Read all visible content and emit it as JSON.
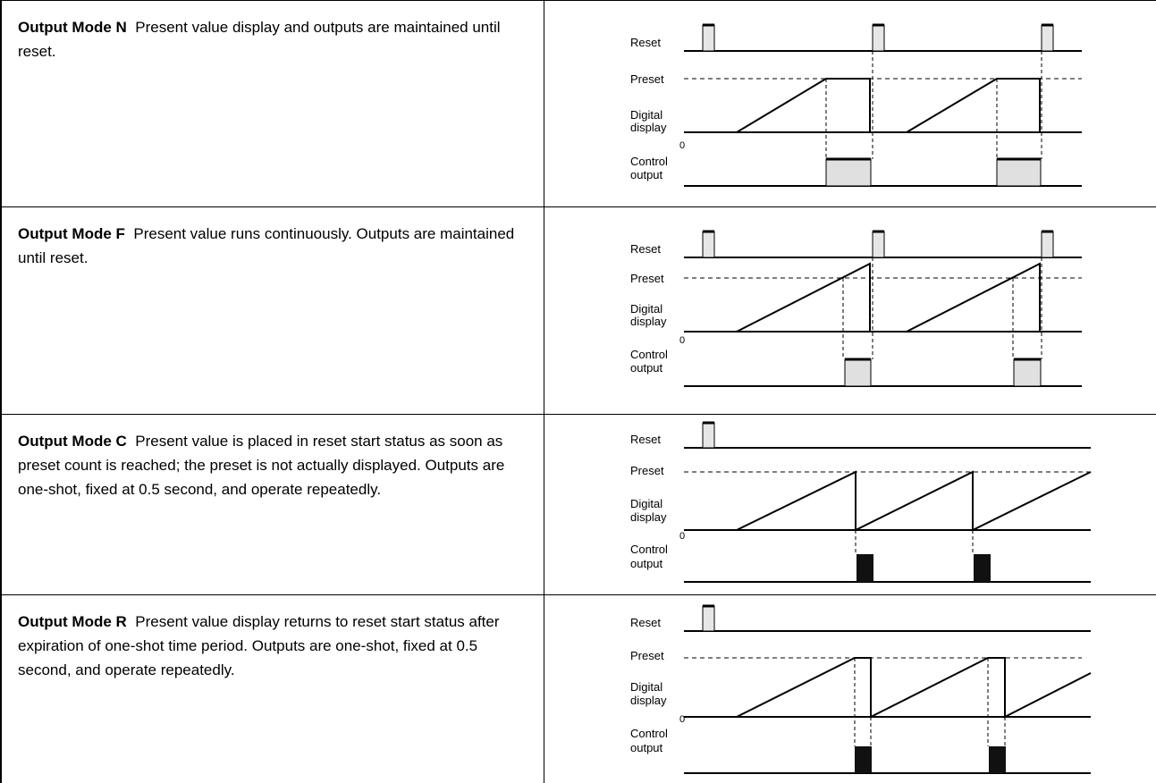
{
  "modes": [
    {
      "id": "N",
      "title": "Output Mode N",
      "description": "Present value display and outputs are maintained until reset.",
      "output_style": "maintained",
      "pulse_color": "#e0e0e0"
    },
    {
      "id": "F",
      "title": "Output Mode F",
      "description": "Present value runs continuously. Outputs are maintained until reset.",
      "output_style": "maintained",
      "pulse_color": "#e0e0e0"
    },
    {
      "id": "C",
      "title": "Output Mode C",
      "description": "Present value is placed in reset start status as soon as preset count is reached; the preset is not actually displayed. Outputs are one-shot, fixed at 0.5 second, and operate repeatedly.",
      "output_style": "one-shot",
      "pulse_color": "#111111"
    },
    {
      "id": "R",
      "title": "Output Mode R",
      "description": "Present value display returns to reset start status after expiration of one-shot time period. Outputs are one-shot, fixed at 0.5 second, and operate repeatedly.",
      "output_style": "one-shot",
      "pulse_color": "#111111"
    }
  ],
  "labels": {
    "reset": "Reset",
    "preset": "Preset",
    "digital": "Digital",
    "display": "display",
    "zero": "0",
    "control": "Control",
    "output": "output"
  },
  "colors": {
    "reset_pulse": "#e6e6e6",
    "maintained_output": "#e0e0e0",
    "one_shot_output": "#111111"
  }
}
